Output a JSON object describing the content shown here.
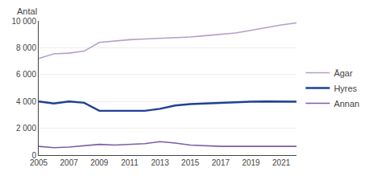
{
  "chart_data": {
    "type": "line",
    "ylabel": "Antal",
    "x": [
      2005,
      2006,
      2007,
      2008,
      2009,
      2010,
      2011,
      2012,
      2013,
      2014,
      2015,
      2016,
      2017,
      2018,
      2019,
      2020,
      2021,
      2022
    ],
    "series": [
      {
        "name": "Ägar",
        "color": "#b3a0c8",
        "values": [
          7200,
          7550,
          7600,
          7750,
          8400,
          8500,
          8600,
          8650,
          8700,
          8750,
          8800,
          8900,
          9000,
          9100,
          9300,
          9500,
          9700,
          9850
        ]
      },
      {
        "name": "Hyres",
        "color": "#1f4096",
        "values": [
          4000,
          3850,
          4000,
          3900,
          3300,
          3300,
          3280,
          3300,
          3450,
          3700,
          3800,
          3850,
          3900,
          3950,
          3980,
          4000,
          4000,
          3980
        ]
      },
      {
        "name": "Annan",
        "color": "#7b5ea7",
        "values": [
          650,
          550,
          600,
          700,
          800,
          750,
          800,
          850,
          1000,
          900,
          750,
          700,
          650,
          650,
          650,
          620,
          620,
          650
        ]
      }
    ],
    "xlim": [
      2005,
      2022
    ],
    "xticks": [
      2005,
      2007,
      2009,
      2011,
      2013,
      2015,
      2017,
      2019,
      2021
    ],
    "ylim": [
      0,
      10000
    ],
    "yticks": [
      0,
      {
        "value": 2000,
        "label": "2 000"
      },
      {
        "value": 4000,
        "label": "4 000"
      },
      {
        "value": 6000,
        "label": "6 000"
      },
      {
        "value": 8000,
        "label": "8 000"
      },
      {
        "value": 10000,
        "label": "10 000"
      }
    ],
    "grid": true,
    "legend": "right"
  }
}
